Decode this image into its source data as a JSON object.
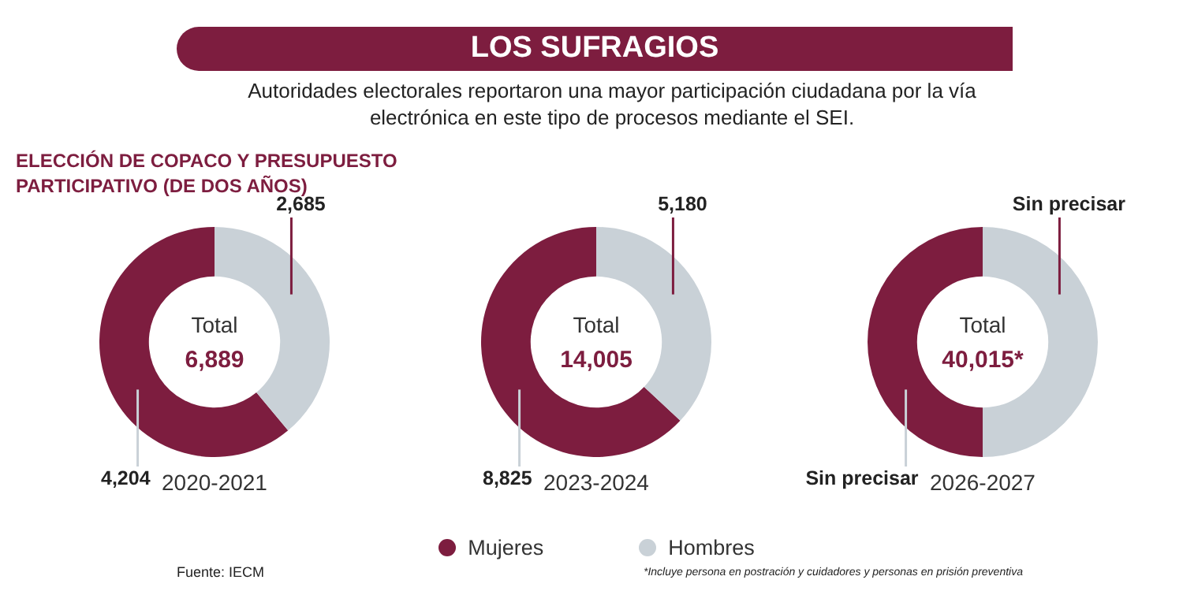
{
  "chart_data": [
    {
      "type": "other",
      "title": "LOS SUFRAGIOS",
      "subtitle": "Autoridades electorales reportaron una mayor participación ciudadana por la vía electrónica en este tipo de procesos mediante el SEI.",
      "annotations": [
        "ELECCIÓN DE COPACO Y PRESUPUESTO PARTICIPATIVO (DE DOS AÑOS)",
        "Fuente: IECM",
        "*Incluye persona en postración y cuidadores y personas en prisión preventiva"
      ]
    },
    {
      "type": "donut",
      "title": "2020-2021",
      "values": [
        4204,
        2685
      ],
      "colors": [
        "#7d1d3f",
        "#c9d1d7"
      ],
      "value_labels": [
        "4,204",
        "2,685"
      ],
      "annotations": [
        "Total",
        "6,889"
      ]
    },
    {
      "type": "donut",
      "title": "2023-2024",
      "categories": [
        "Mujeres",
        "Hombres"
      ],
      "values": [
        8825,
        5180
      ],
      "colors": [
        "#7d1d3f",
        "#c9d1d7"
      ],
      "value_labels": [
        "8,825",
        "5,180"
      ],
      "annotations": [
        "Total",
        "14,005"
      ],
      "legend": "bottom"
    },
    {
      "type": "donut",
      "title": "2026-2027",
      "values": [
        50,
        50
      ],
      "colors": [
        "#7d1d3f",
        "#c9d1d7"
      ],
      "value_labels": [
        "Sin precisar",
        "Sin precisar"
      ],
      "annotations": [
        "Total",
        "40,015*"
      ]
    }
  ]
}
